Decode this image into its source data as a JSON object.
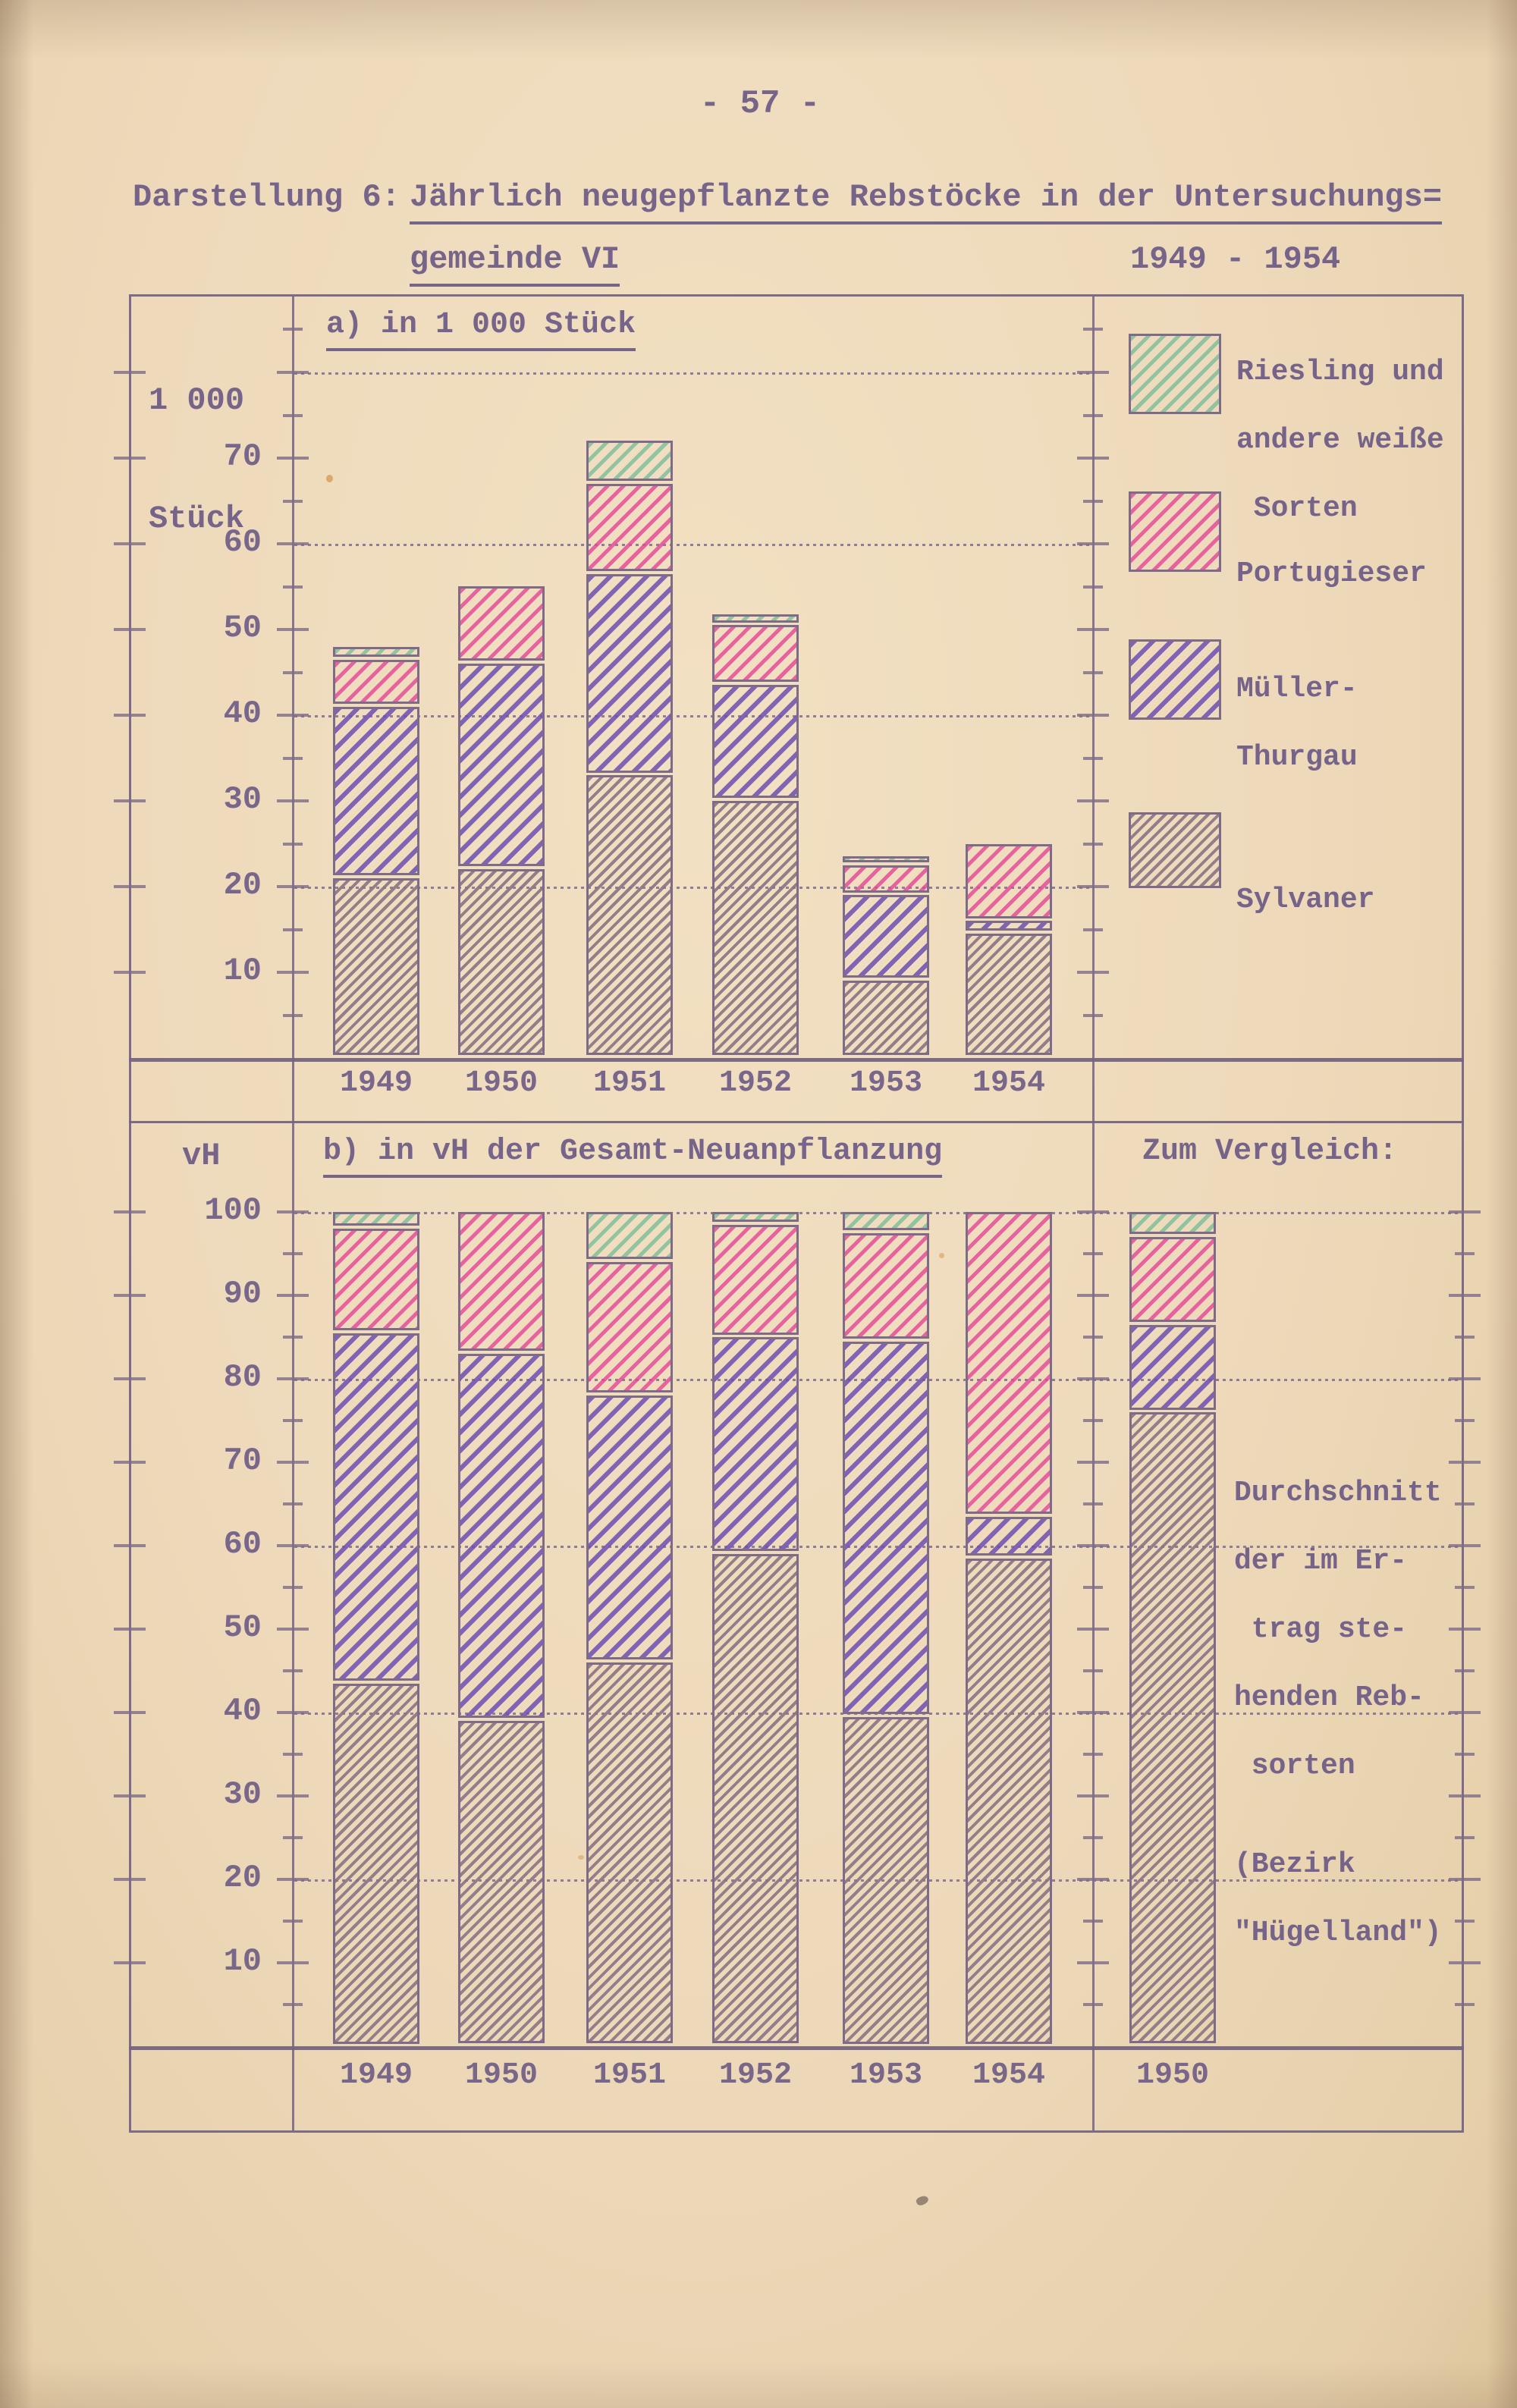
{
  "page_number": "- 57 -",
  "title": {
    "prefix": "Darstellung 6:",
    "line1": "Jährlich neugepflanzte Rebstöcke in der Untersuchungs=",
    "line2": "gemeinde VI",
    "period": "1949 - 1954"
  },
  "colors": {
    "paper": "#eedabb",
    "ink": "#7d6b88",
    "riesling_green": "#8cc29e",
    "portugieser_pink": "#e54898",
    "mueller_thurgau_purple": "#6d4eb2",
    "sylvaner_gray": "#8a7484"
  },
  "legend": {
    "items": [
      {
        "id": "riesling",
        "lines": [
          "Riesling und",
          "andere weiße",
          " Sorten"
        ]
      },
      {
        "id": "portugieser",
        "lines": [
          "Portugieser"
        ]
      },
      {
        "id": "mueller",
        "lines": [
          "Müller-",
          "Thurgau"
        ]
      },
      {
        "id": "sylvaner",
        "lines": [
          "Sylvaner"
        ]
      }
    ]
  },
  "chart_data": [
    {
      "id": "a",
      "type": "bar",
      "stacked": true,
      "title": "a) in 1 000 Stück",
      "ylabel_lines": [
        "1 000",
        "Stück"
      ],
      "categories": [
        "1949",
        "1950",
        "1951",
        "1952",
        "1953",
        "1954"
      ],
      "ylim": [
        0,
        88
      ],
      "yticks": [
        10,
        20,
        30,
        40,
        50,
        60,
        70
      ],
      "gridlines": [
        20,
        40,
        60,
        80
      ],
      "tick_step": 5,
      "legend_position": "right",
      "series": [
        {
          "name": "Sylvaner",
          "key": "sylvaner",
          "values": [
            21,
            22,
            33,
            30,
            9,
            14.5
          ]
        },
        {
          "name": "Müller-Thurgau",
          "key": "mueller",
          "values": [
            20,
            24,
            23.5,
            13.5,
            10,
            1.5
          ]
        },
        {
          "name": "Portugieser",
          "key": "portugieser",
          "values": [
            5.5,
            9,
            10.5,
            7,
            3.5,
            9
          ]
        },
        {
          "name": "Riesling und andere weiße Sorten",
          "key": "riesling",
          "values": [
            1.5,
            0,
            5,
            1.3,
            1,
            0
          ]
        }
      ],
      "totals": [
        48,
        55,
        72,
        51.8,
        23.5,
        25
      ]
    },
    {
      "id": "b",
      "type": "bar",
      "stacked": true,
      "title": "b) in vH der Gesamt-Neuanpflanzung",
      "ylabel_lines": [
        "vH"
      ],
      "categories": [
        "1949",
        "1950",
        "1951",
        "1952",
        "1953",
        "1954"
      ],
      "ylim": [
        0,
        100
      ],
      "yticks": [
        10,
        20,
        30,
        40,
        50,
        60,
        70,
        80,
        90,
        100
      ],
      "gridlines": [
        20,
        40,
        60,
        80,
        100
      ],
      "tick_step": 5,
      "series": [
        {
          "name": "Sylvaner",
          "key": "sylvaner",
          "values": [
            43.5,
            39,
            46,
            59,
            39.5,
            58.5
          ]
        },
        {
          "name": "Müller-Thurgau",
          "key": "mueller",
          "values": [
            42,
            44,
            32,
            26,
            45,
            5
          ]
        },
        {
          "name": "Portugieser",
          "key": "portugieser",
          "values": [
            12.5,
            17,
            16,
            13.5,
            13,
            36.5
          ]
        },
        {
          "name": "Riesling und andere weiße Sorten",
          "key": "riesling",
          "values": [
            2,
            0,
            6,
            1.5,
            2.5,
            0
          ]
        }
      ]
    },
    {
      "id": "comparison",
      "type": "bar",
      "stacked": true,
      "title": "Zum Vergleich:",
      "categories": [
        "1950"
      ],
      "ylim": [
        0,
        100
      ],
      "series": [
        {
          "name": "Sylvaner",
          "key": "sylvaner",
          "values": [
            76
          ]
        },
        {
          "name": "Müller-Thurgau",
          "key": "mueller",
          "values": [
            10.5
          ]
        },
        {
          "name": "Portugieser",
          "key": "portugieser",
          "values": [
            10.5
          ]
        },
        {
          "name": "Riesling und andere weiße Sorten",
          "key": "riesling",
          "values": [
            3
          ]
        }
      ],
      "note_lines": [
        "Durchschnitt",
        "der im Er-",
        " trag ste-",
        "henden Reb-",
        " sorten",
        "(Bezirk",
        "\"Hügelland\")"
      ]
    }
  ]
}
